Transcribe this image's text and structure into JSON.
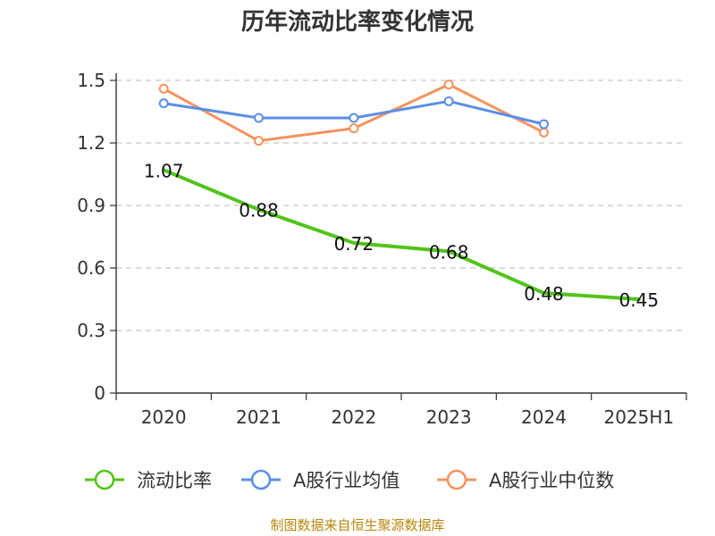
{
  "chart_data": {
    "type": "line",
    "title": "历年流动比率变化情况",
    "categories": [
      "2020",
      "2021",
      "2022",
      "2023",
      "2024",
      "2025H1"
    ],
    "ylim": [
      0,
      1.5
    ],
    "yticks": [
      "0",
      "0.3",
      "0.6",
      "0.9",
      "1.2",
      "1.5"
    ],
    "ytick_values": [
      0,
      0.3,
      0.6,
      0.9,
      1.2,
      1.5
    ],
    "grid": true,
    "legend_position": "bottom",
    "series": [
      {
        "name": "流动比率",
        "color": "#52c41a",
        "values": [
          1.07,
          0.88,
          0.72,
          0.68,
          0.48,
          0.45
        ],
        "labels": [
          "1.07",
          "0.88",
          "0.72",
          "0.68",
          "0.48",
          "0.45"
        ]
      },
      {
        "name": "A股行业均值",
        "color": "#5b8ee6",
        "values": [
          1.39,
          1.32,
          1.32,
          1.4,
          1.29,
          null
        ]
      },
      {
        "name": "A股行业中位数",
        "color": "#f5925e",
        "values": [
          1.46,
          1.21,
          1.27,
          1.48,
          1.25,
          null
        ]
      }
    ]
  },
  "source_text": "制图数据来自恒生聚源数据库"
}
